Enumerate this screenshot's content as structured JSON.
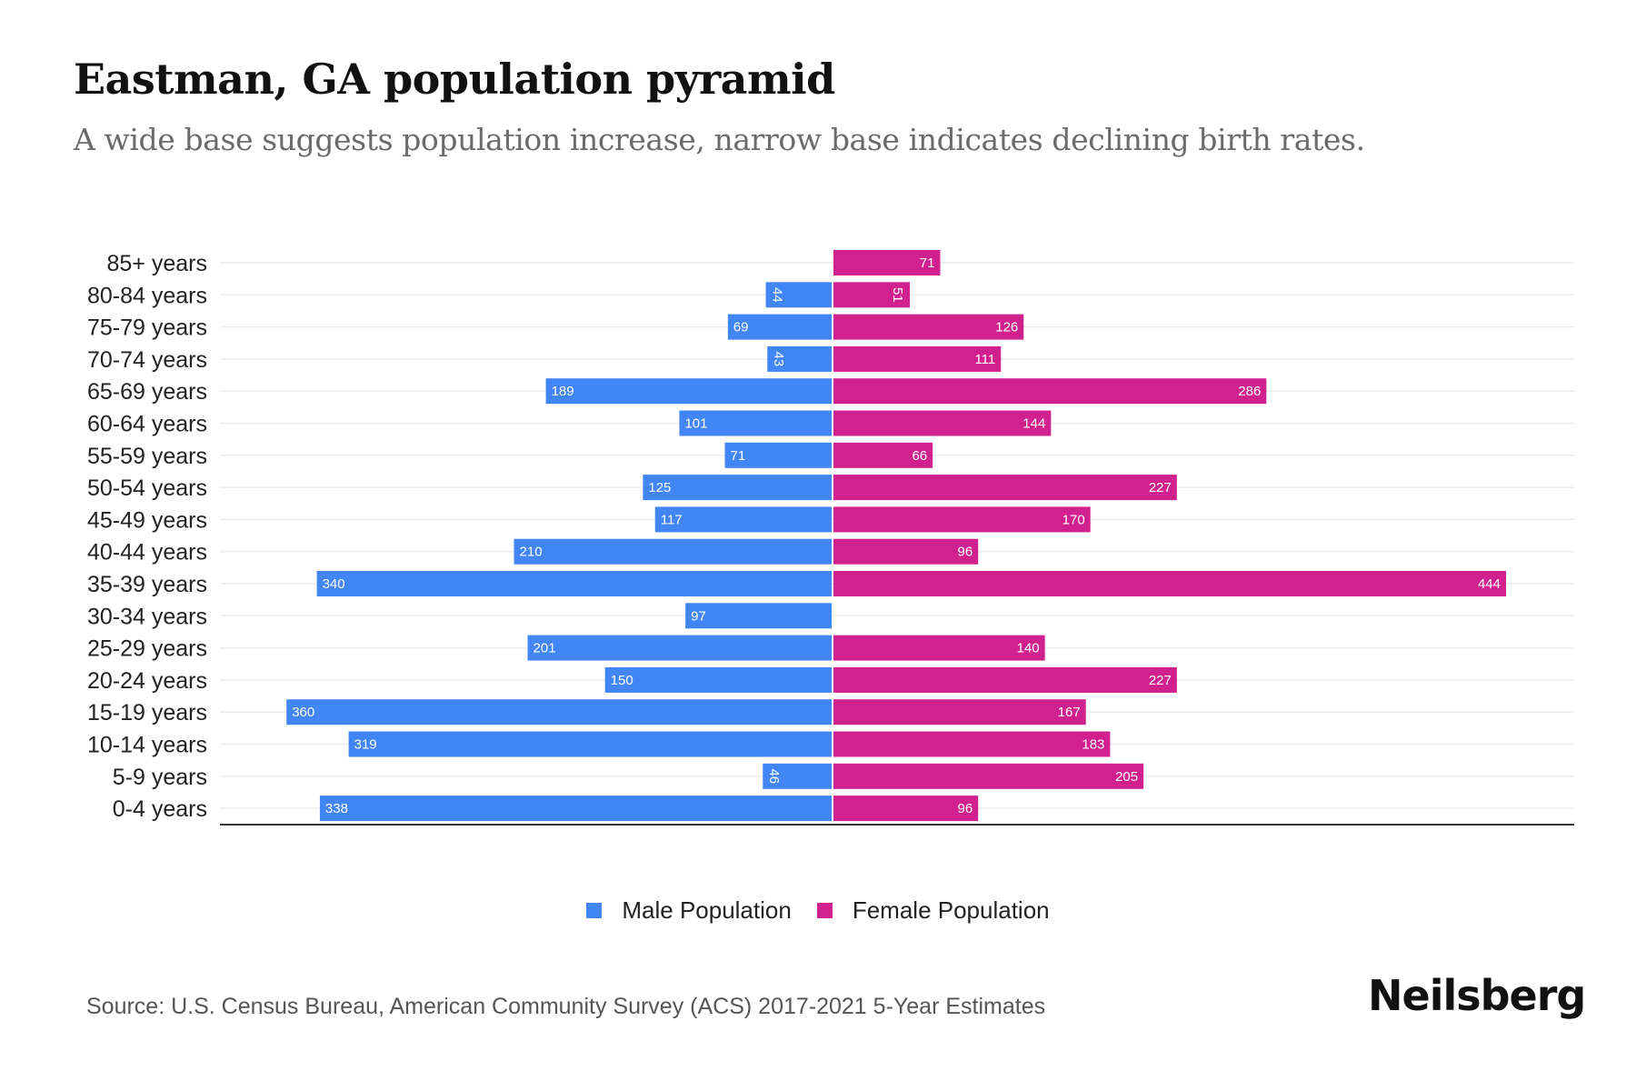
{
  "header": {
    "title": "Eastman, GA population pyramid",
    "subtitle": "A wide base suggests population increase, narrow base indicates declining birth rates."
  },
  "footer": {
    "source": "Source: U.S. Census Bureau, American Community Survey (ACS) 2017-2021 5-Year Estimates",
    "brand": "Neilsberg"
  },
  "colors": {
    "male": "#4285f4",
    "female": "#d0218f",
    "grid": "#ececec",
    "axis": "#333333"
  },
  "chart_data": {
    "type": "bar",
    "orientation": "horizontal-diverging",
    "title": "Eastman, GA population pyramid",
    "subtitle": "A wide base suggests population increase, narrow base indicates declining birth rates.",
    "xlabel": "",
    "ylabel": "",
    "grid": true,
    "legend_position": "bottom-center",
    "categories": [
      "85+ years",
      "80-84 years",
      "75-79 years",
      "70-74 years",
      "65-69 years",
      "60-64 years",
      "55-59 years",
      "50-54 years",
      "45-49 years",
      "40-44 years",
      "35-39 years",
      "30-34 years",
      "25-29 years",
      "20-24 years",
      "15-19 years",
      "10-14 years",
      "5-9 years",
      "0-4 years"
    ],
    "series": [
      {
        "name": "Male Population",
        "side": "left",
        "values": [
          0,
          44,
          69,
          43,
          189,
          101,
          71,
          125,
          117,
          210,
          340,
          97,
          201,
          150,
          360,
          319,
          46,
          338
        ]
      },
      {
        "name": "Female Population",
        "side": "right",
        "values": [
          71,
          51,
          126,
          111,
          286,
          144,
          66,
          227,
          170,
          96,
          444,
          0,
          140,
          227,
          167,
          183,
          205,
          96
        ]
      }
    ],
    "xlim": [
      -444,
      444
    ]
  }
}
